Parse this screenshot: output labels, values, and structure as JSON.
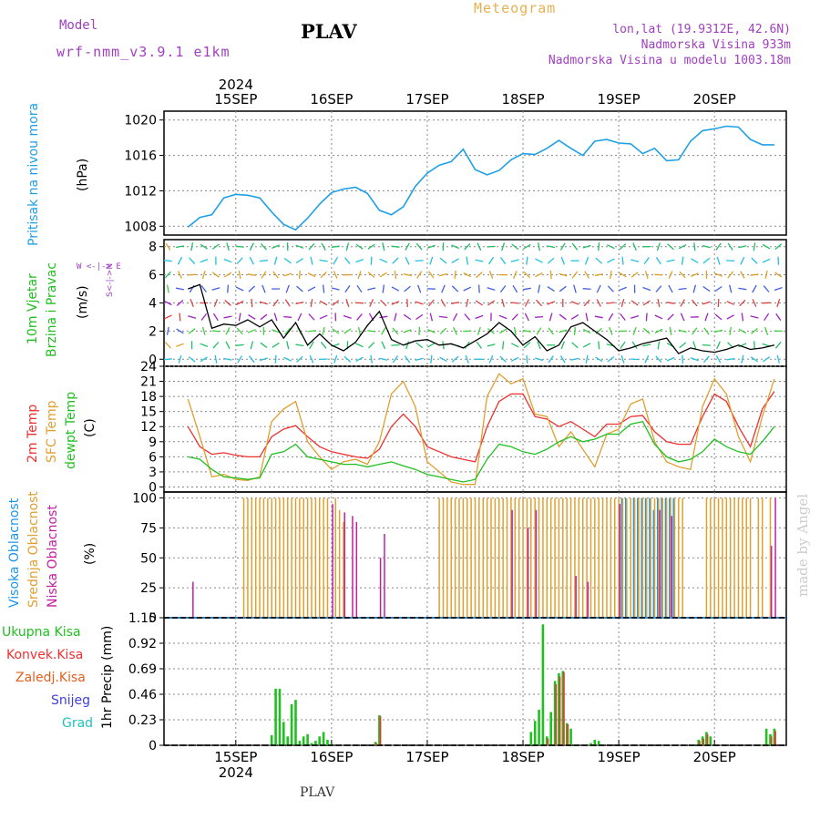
{
  "header": {
    "model_label": "Model",
    "model_name": "wrf-nmm_v3.9.1 e1km",
    "station": "PLAV",
    "meteogram": "Meteogram",
    "lonlat": "lon,lat (19.9312E, 42.6N)",
    "altitude": "Nadmorska Visina 933m",
    "model_altitude": "Nadmorska Visina u modelu 1003.18m"
  },
  "footer": {
    "station": "PLAV",
    "watermark": "made by Angel"
  },
  "colors": {
    "pressure": "#1ea0e6",
    "wind_legend": "#20c020",
    "temp2m": "#ee3030",
    "sfc_temp": "#e0a030",
    "dewpt": "#20c020",
    "cloud_high": "#1e96e6",
    "cloud_mid": "#e0a030",
    "cloud_low": "#c020a0",
    "precip_total": "#20c020",
    "precip_conv": "#ee3030",
    "precip_grid": "#e06020",
    "snow": "#4040dd",
    "hail": "#20c0c0",
    "purple": "#a040c0"
  },
  "chart_data": [
    {
      "type": "line",
      "name": "pressure",
      "ylabel": "(hPa)",
      "side_label": "Pritisak na nivou mora",
      "yticks": [
        1008,
        1012,
        1016,
        1020
      ],
      "ylim": [
        1007,
        1021
      ],
      "top_year": "2024",
      "date_labels": [
        "15SEP",
        "16SEP",
        "17SEP",
        "18SEP",
        "19SEP",
        "20SEP"
      ],
      "x_hours": [
        0,
        3,
        6,
        9,
        12,
        15,
        18,
        21,
        24,
        27,
        30,
        33,
        36,
        39,
        42,
        45,
        48,
        51,
        54,
        57,
        60,
        63,
        66,
        69,
        72,
        75,
        78,
        81,
        84,
        87,
        90,
        93,
        96,
        99,
        102,
        105,
        108,
        111,
        114,
        117,
        120,
        123,
        126,
        129,
        132,
        135,
        138,
        141,
        144,
        147
      ],
      "values": [
        1007.9,
        1009.0,
        1009.3,
        1011.2,
        1011.6,
        1011.5,
        1011.2,
        1009.6,
        1008.2,
        1007.6,
        1008.9,
        1010.5,
        1011.8,
        1012.2,
        1012.4,
        1011.7,
        1009.8,
        1009.3,
        1010.2,
        1012.5,
        1014.0,
        1014.9,
        1015.3,
        1016.7,
        1014.4,
        1013.8,
        1014.3,
        1015.5,
        1016.2,
        1016.1,
        1016.8,
        1017.7,
        1016.8,
        1016.0,
        1017.6,
        1017.8,
        1017.4,
        1017.3,
        1016.2,
        1016.8,
        1015.4,
        1015.5,
        1017.6,
        1018.8,
        1019.0,
        1019.3,
        1019.2,
        1017.8,
        1017.2,
        1017.2
      ]
    },
    {
      "type": "line",
      "name": "wind",
      "ylabel": "(m/s)",
      "side_labels": [
        "10m Vjetar",
        "Brzina i Pravac"
      ],
      "compass": "W <-|-> E",
      "compass_ns": "S<-|->N",
      "yticks": [
        0,
        2,
        4,
        6,
        8
      ],
      "ylim": [
        -0.5,
        8.5
      ],
      "x_hours": [
        0,
        3,
        6,
        9,
        12,
        15,
        18,
        21,
        24,
        27,
        30,
        33,
        36,
        39,
        42,
        45,
        48,
        51,
        54,
        57,
        60,
        63,
        66,
        69,
        72,
        75,
        78,
        81,
        84,
        87,
        90,
        93,
        96,
        99,
        102,
        105,
        108,
        111,
        114,
        117,
        120,
        123,
        126,
        129,
        132,
        135,
        138,
        141,
        144,
        147
      ],
      "values": [
        5.0,
        5.3,
        2.2,
        2.5,
        2.4,
        2.8,
        2.3,
        2.8,
        1.5,
        2.6,
        1.0,
        1.8,
        1.0,
        0.6,
        1.2,
        2.4,
        3.4,
        1.4,
        1.0,
        1.3,
        1.4,
        1.0,
        1.1,
        0.8,
        1.3,
        1.8,
        2.6,
        2.0,
        1.0,
        1.6,
        0.6,
        1.0,
        2.3,
        2.6,
        2.0,
        1.4,
        0.6,
        0.8,
        1.1,
        1.3,
        1.5,
        0.4,
        0.8,
        0.6,
        0.5,
        0.7,
        1.0,
        0.7,
        0.8,
        1.0
      ]
    },
    {
      "type": "line",
      "name": "temperature",
      "ylabel": "(C)",
      "side_labels": [
        "2m Temp",
        "SFC Temp",
        "dewpt Temp"
      ],
      "yticks": [
        0,
        3,
        6,
        9,
        12,
        15,
        18,
        21,
        24
      ],
      "ylim": [
        -1,
        24
      ],
      "x_hours": [
        0,
        3,
        6,
        9,
        12,
        15,
        18,
        21,
        24,
        27,
        30,
        33,
        36,
        39,
        42,
        45,
        48,
        51,
        54,
        57,
        60,
        63,
        66,
        69,
        72,
        75,
        78,
        81,
        84,
        87,
        90,
        93,
        96,
        99,
        102,
        105,
        108,
        111,
        114,
        117,
        120,
        123,
        126,
        129,
        132,
        135,
        138,
        141,
        144,
        147
      ],
      "series": [
        {
          "name": "2m Temp",
          "values": [
            12.0,
            8.0,
            6.5,
            6.8,
            6.3,
            6.0,
            6.0,
            10.0,
            11.5,
            12.2,
            10.0,
            8.0,
            7.0,
            6.5,
            6.0,
            5.7,
            7.5,
            12.0,
            14.5,
            12.0,
            8.0,
            7.0,
            6.0,
            5.5,
            5.0,
            12.0,
            17.0,
            18.5,
            18.5,
            14.0,
            13.5,
            12.0,
            13.0,
            11.5,
            10.0,
            12.5,
            12.5,
            14.0,
            14.2,
            11.0,
            9.0,
            8.5,
            8.5,
            14.0,
            18.5,
            17.0,
            12.0,
            8.0,
            15.5,
            19.0
          ]
        },
        {
          "name": "SFC Temp",
          "values": [
            17.5,
            10.0,
            2.0,
            2.5,
            1.5,
            1.3,
            2.0,
            13.0,
            15.5,
            17.0,
            9.0,
            6.0,
            3.5,
            5.0,
            5.5,
            4.5,
            9.0,
            18.5,
            21.0,
            16.0,
            5.0,
            3.0,
            1.0,
            0.5,
            0.5,
            18.0,
            22.5,
            20.5,
            21.5,
            14.5,
            14.0,
            8.0,
            11.0,
            7.5,
            4.0,
            10.5,
            11.5,
            16.5,
            17.5,
            9.0,
            5.0,
            4.0,
            3.5,
            16.0,
            21.5,
            18.5,
            10.0,
            5.0,
            14.0,
            21.5
          ]
        },
        {
          "name": "dewpt Temp",
          "values": [
            6.0,
            5.5,
            3.5,
            2.0,
            1.8,
            1.5,
            1.8,
            6.5,
            7.0,
            8.5,
            6.0,
            5.5,
            5.0,
            4.5,
            4.5,
            4.0,
            4.5,
            5.0,
            4.2,
            3.5,
            2.5,
            2.0,
            1.5,
            1.0,
            1.5,
            5.5,
            8.5,
            8.0,
            7.0,
            6.5,
            7.5,
            9.0,
            10.0,
            9.0,
            9.5,
            10.5,
            10.5,
            12.5,
            13.0,
            8.5,
            6.0,
            5.0,
            5.5,
            7.0,
            9.5,
            8.0,
            7.0,
            6.5,
            9.0,
            12.0
          ]
        }
      ]
    },
    {
      "type": "bar",
      "name": "cloud",
      "ylabel": "(%)",
      "side_labels": [
        "Visoka Oblacnost",
        "Srednja Oblacnost",
        "Niska Oblacnost"
      ],
      "yticks": [
        0,
        25,
        50,
        75,
        100
      ],
      "ylim": [
        0,
        105
      ],
      "series": [
        {
          "name": "Visoka Oblacnost",
          "hours": [
            109,
            110,
            112,
            113,
            114,
            115,
            116,
            117,
            118,
            119,
            120,
            121,
            122
          ],
          "values": [
            100,
            100,
            100,
            100,
            100,
            100,
            100,
            90,
            100,
            100,
            100,
            100,
            100
          ]
        },
        {
          "name": "Srednja Oblacnost",
          "hours": [
            14,
            15,
            16,
            17,
            18,
            19,
            20,
            21,
            22,
            23,
            24,
            25,
            26,
            27,
            28,
            29,
            30,
            31,
            32,
            33,
            34,
            35,
            37,
            38,
            39,
            63,
            64,
            65,
            66,
            67,
            68,
            69,
            70,
            71,
            72,
            73,
            74,
            75,
            76,
            77,
            78,
            79,
            80,
            81,
            82,
            83,
            84,
            85,
            86,
            87,
            88,
            89,
            90,
            91,
            92,
            93,
            94,
            95,
            96,
            97,
            98,
            99,
            100,
            101,
            102,
            103,
            104,
            105,
            106,
            107,
            108,
            109,
            110,
            111,
            112,
            113,
            114,
            115,
            116,
            117,
            118,
            119,
            120,
            121,
            122,
            123,
            124,
            130,
            131,
            132,
            133,
            134,
            135,
            136,
            137,
            138,
            139,
            140,
            141,
            143,
            144,
            146
          ],
          "values": [
            100,
            100,
            100,
            100,
            100,
            100,
            100,
            100,
            100,
            100,
            100,
            100,
            100,
            100,
            100,
            100,
            100,
            100,
            100,
            100,
            100,
            100,
            100,
            90,
            80,
            100,
            100,
            100,
            100,
            100,
            100,
            100,
            100,
            100,
            100,
            100,
            100,
            100,
            100,
            100,
            100,
            100,
            100,
            100,
            100,
            100,
            100,
            100,
            100,
            100,
            100,
            100,
            100,
            100,
            100,
            100,
            100,
            100,
            100,
            100,
            100,
            100,
            100,
            100,
            100,
            100,
            100,
            100,
            100,
            100,
            100,
            100,
            100,
            100,
            100,
            100,
            100,
            100,
            100,
            100,
            100,
            100,
            100,
            100,
            100,
            100,
            100,
            100,
            100,
            100,
            100,
            100,
            100,
            100,
            100,
            100,
            100,
            100,
            100,
            100,
            100,
            100
          ]
        },
        {
          "name": "Niska Oblacnost",
          "hours": [
            1,
            36,
            39,
            41,
            42,
            48,
            49,
            81,
            85,
            87,
            97,
            100,
            108,
            118,
            121,
            146,
            147
          ],
          "values": [
            30,
            95,
            88,
            85,
            80,
            50,
            70,
            90,
            75,
            90,
            35,
            30,
            95,
            90,
            85,
            60,
            100
          ]
        }
      ]
    },
    {
      "type": "bar",
      "name": "precip",
      "ylabel": "1hr Precip (mm)",
      "side_labels": [
        "Ukupna Kisa",
        "Konvek.Kisa",
        "Zaledj.Kisa",
        "Snijeg",
        "Grad"
      ],
      "yticks": [
        "0",
        "0.23",
        "0.46",
        "0.69",
        "0.92",
        "1.15"
      ],
      "ylim": [
        0,
        1.15
      ],
      "series": [
        {
          "name": "Ukupna Kisa",
          "hours": [
            21,
            22,
            23,
            24,
            25,
            26,
            27,
            28,
            29,
            30,
            31,
            32,
            33,
            34,
            35,
            36,
            47,
            48,
            86,
            87,
            88,
            89,
            90,
            91,
            92,
            93,
            94,
            95,
            96,
            101,
            102,
            103,
            128,
            129,
            130,
            131,
            145,
            146,
            147
          ],
          "values": [
            0.09,
            0.51,
            0.51,
            0.21,
            0.08,
            0.37,
            0.41,
            0.04,
            0.08,
            0.1,
            0.02,
            0.04,
            0.08,
            0.12,
            0.05,
            0.02,
            0.03,
            0.27,
            0.12,
            0.22,
            0.32,
            1.09,
            0.08,
            0.3,
            0.58,
            0.65,
            0.67,
            0.2,
            0.15,
            0.02,
            0.05,
            0.04,
            0.05,
            0.08,
            0.12,
            0.08,
            0.15,
            0.1,
            0.15
          ]
        },
        {
          "name": "Konvek.Kisa",
          "hours": [
            47,
            48,
            90,
            92,
            93,
            94,
            95,
            128,
            129,
            130,
            146,
            147
          ],
          "values": [
            0.02,
            0.26,
            0.06,
            0.55,
            0.62,
            0.66,
            0.19,
            0.04,
            0.06,
            0.1,
            0.08,
            0.13
          ]
        }
      ]
    }
  ]
}
